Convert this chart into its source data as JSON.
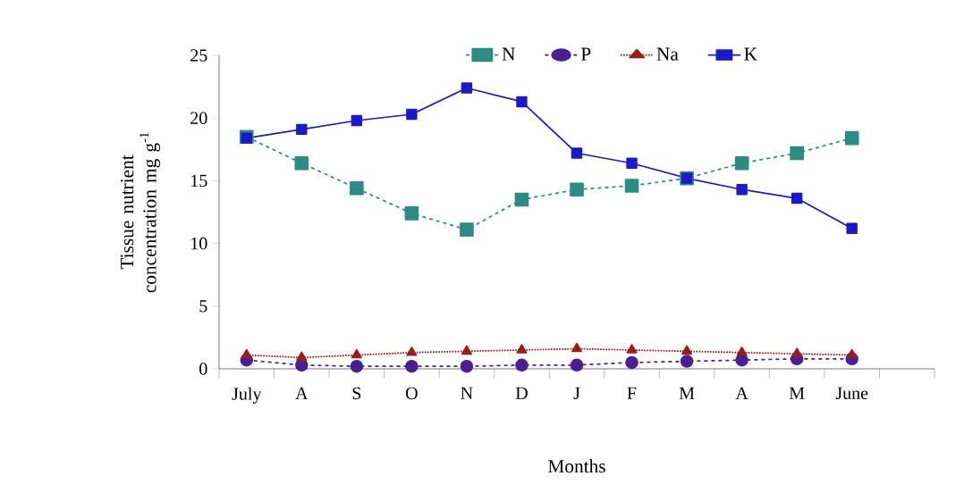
{
  "chart_data": {
    "type": "line",
    "xlabel": "Months",
    "ylabel": "Tissue nutrient concentration mg g$^{-1}$",
    "categories": [
      "July",
      "A",
      "S",
      "O",
      "N",
      "D",
      "J",
      "F",
      "M",
      "A",
      "M",
      "June"
    ],
    "ylim": [
      0,
      25
    ],
    "yticks": [
      0,
      5,
      10,
      15,
      20,
      25
    ],
    "legend": "top",
    "series": [
      {
        "name": "N",
        "color": "#2a8c84",
        "marker": "square",
        "line_style": "dashed",
        "values": [
          18.5,
          16.4,
          14.4,
          12.4,
          11.1,
          13.5,
          14.3,
          14.6,
          15.2,
          16.4,
          17.2,
          18.4
        ]
      },
      {
        "name": "P",
        "color": "#4b1d96",
        "marker": "circle",
        "line_style": "dashed",
        "values": [
          0.7,
          0.3,
          0.2,
          0.2,
          0.2,
          0.3,
          0.3,
          0.5,
          0.6,
          0.7,
          0.8,
          0.8
        ]
      },
      {
        "name": "Na",
        "color": "#a01a1a",
        "marker": "triangle",
        "line_style": "dotted",
        "values": [
          1.1,
          0.9,
          1.1,
          1.3,
          1.4,
          1.5,
          1.6,
          1.5,
          1.4,
          1.3,
          1.2,
          1.1
        ]
      },
      {
        "name": "K",
        "color": "#1a1acc",
        "marker": "square",
        "line_style": "solid",
        "values": [
          18.4,
          19.1,
          19.8,
          20.3,
          22.4,
          21.3,
          17.2,
          16.4,
          15.2,
          14.3,
          13.6,
          11.2
        ]
      }
    ]
  }
}
